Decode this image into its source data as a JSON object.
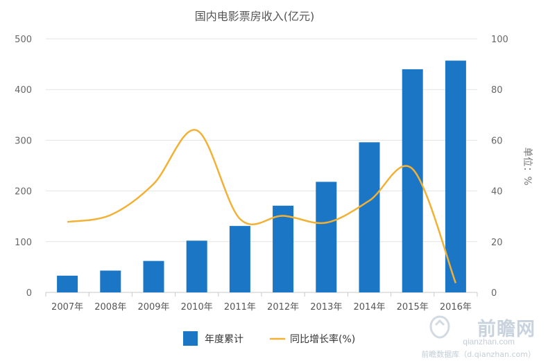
{
  "chart_data": {
    "type": "bar+line",
    "title": "国内电影票房收入(亿元)",
    "categories": [
      "2007年",
      "2008年",
      "2009年",
      "2010年",
      "2011年",
      "2012年",
      "2013年",
      "2014年",
      "2015年",
      "2016年"
    ],
    "series": [
      {
        "name": "年度累计",
        "type": "bar",
        "axis": "left",
        "color": "#1b77c6",
        "values": [
          33,
          43,
          62,
          102,
          131,
          171,
          218,
          296,
          440,
          457
        ]
      },
      {
        "name": "同比增长率(%)",
        "type": "line",
        "axis": "right",
        "color": "#f2b134",
        "values": [
          27.8,
          30.5,
          42.8,
          63.9,
          29.0,
          30.2,
          27.5,
          36.2,
          48.7,
          3.7
        ]
      }
    ],
    "yleft": {
      "ticks": [
        "0",
        "100",
        "200",
        "300",
        "400",
        "500"
      ],
      "lim": [
        0,
        500
      ]
    },
    "yright": {
      "ticks": [
        "0",
        "20",
        "40",
        "60",
        "80",
        "100"
      ],
      "lim": [
        0,
        100
      ],
      "label": "单位：%"
    },
    "legend": "bottom-center",
    "grid": true
  },
  "watermark": {
    "logo": "前瞻网",
    "url": "qianzhan.com",
    "footer": "前瞻数据库（d.qianzhan.com）"
  }
}
